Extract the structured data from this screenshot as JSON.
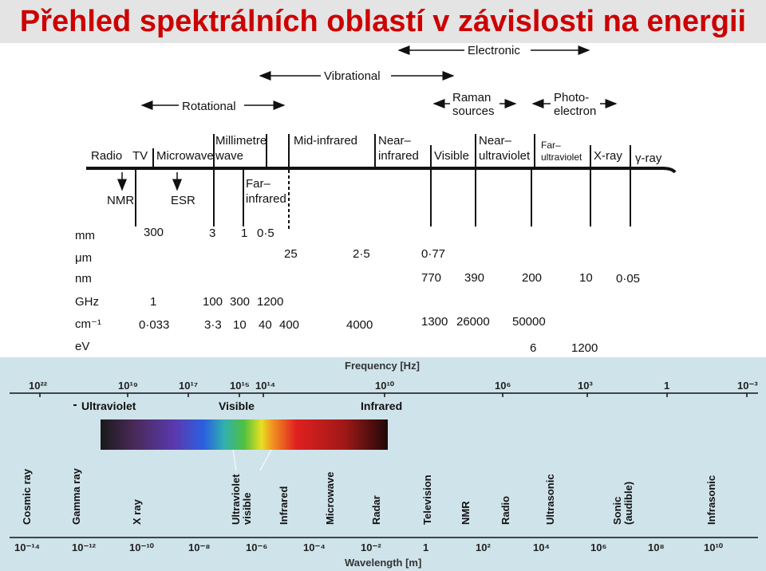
{
  "title": "Přehled spektrálních oblastí v závislosti na energii",
  "colors": {
    "title": "#cc0000",
    "panel_bg": "#cfe3ea",
    "line": "#111111"
  },
  "upper": {
    "ranges": {
      "electronic": "Electronic",
      "vibrational": "Vibrational",
      "rotational": "Rotational",
      "raman": [
        "Raman",
        "sources"
      ],
      "photo": [
        "Photo-",
        "electron"
      ]
    },
    "regions": {
      "radio": "Radio",
      "tv": "TV",
      "microwave": "Microwave",
      "millimetre": "Millimetre",
      "wave": "wave",
      "mid_ir": "Mid-infrared",
      "near_ir": [
        "Near–",
        "infrared"
      ],
      "visible": "Visible",
      "near_uv": [
        "Near–",
        "ultraviolet"
      ],
      "far_uv": [
        "Far–",
        "ultraviolet"
      ],
      "xray": "X-ray",
      "gamma": "γ-ray",
      "nmr": "NMR",
      "esr": "ESR",
      "far_ir": [
        "Far–",
        "infrared"
      ]
    },
    "table": {
      "units": [
        "mm",
        "μm",
        "nm",
        "GHz",
        "cm⁻¹",
        "eV"
      ],
      "mm": [
        "300",
        "3",
        "1",
        "0·5"
      ],
      "um": [
        "25",
        "2·5",
        "0·77"
      ],
      "nm": [
        "770",
        "390",
        "200",
        "10",
        "0·05"
      ],
      "ghz": [
        "1",
        "100",
        "300",
        "1200"
      ],
      "cm": [
        "0·033",
        "3·3",
        "10",
        "40",
        "400",
        "4000",
        "1300",
        "26000",
        "50000"
      ],
      "ev": [
        "6",
        "1200"
      ]
    }
  },
  "lower": {
    "frequency_label": "Frequency [Hz]",
    "frequency_ticks": [
      "10²²",
      "10¹⁹",
      "10¹⁷",
      "10¹⁵",
      "10¹⁴",
      "10¹⁰",
      "10⁶",
      "10³",
      "1",
      "10⁻³"
    ],
    "bands": [
      "Ultraviolet",
      "Visible",
      "Infrared"
    ],
    "wavelength_label": "Wavelength [m]",
    "categories": [
      "Cosmic ray",
      "Gamma ray",
      "X ray",
      "Ultraviolet visible",
      "Infrared",
      "Microwave",
      "Radar",
      "Television",
      "NMR",
      "Radio",
      "Ultrasonic",
      "Sonic (audible)",
      "Infrasonic"
    ],
    "wavelength_ticks": [
      "10⁻¹⁴",
      "10⁻¹²",
      "10⁻¹⁰",
      "10⁻⁸",
      "10⁻⁶",
      "10⁻⁴",
      "10⁻²",
      "1",
      "10²",
      "10⁴",
      "10⁶",
      "10⁸",
      "10¹⁰"
    ]
  }
}
